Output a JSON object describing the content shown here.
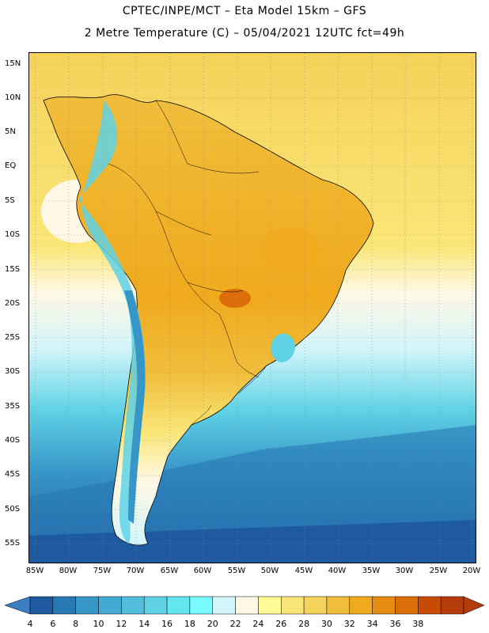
{
  "header": {
    "line1": "CPTEC/INPE/MCT –  Eta Model 15km – GFS",
    "line2": "2 Metre Temperature (C) – 05/04/2021 12UTC fct=49h"
  },
  "map": {
    "region": "South America",
    "lat_labels": [
      "15N",
      "10N",
      "5N",
      "EQ",
      "5S",
      "10S",
      "15S",
      "20S",
      "25S",
      "30S",
      "35S",
      "40S",
      "45S",
      "50S",
      "55S"
    ],
    "lon_labels": [
      "85W",
      "80W",
      "75W",
      "70W",
      "65W",
      "60W",
      "55W",
      "50W",
      "45W",
      "40W",
      "35W",
      "30W",
      "25W",
      "20W"
    ]
  },
  "legend": {
    "unit": "C",
    "ticks": [
      "4",
      "6",
      "8",
      "10",
      "12",
      "14",
      "16",
      "18",
      "20",
      "22",
      "24",
      "26",
      "28",
      "30",
      "32",
      "34",
      "36",
      "38"
    ],
    "colors": [
      "#1f5aa0",
      "#2878b4",
      "#3796c8",
      "#44aad4",
      "#52bedc",
      "#5fd2e6",
      "#64e6f0",
      "#78faff",
      "#d2f5fa",
      "#fff8e6",
      "#fffa96",
      "#fae678",
      "#f5d25a",
      "#f0be3c",
      "#f0aa1e",
      "#e68c14",
      "#dc6e0a",
      "#c84b05",
      "#b43c0a"
    ],
    "low_arrow_color": "#3c7cc0",
    "high_arrow_color": "#b43c0a"
  }
}
